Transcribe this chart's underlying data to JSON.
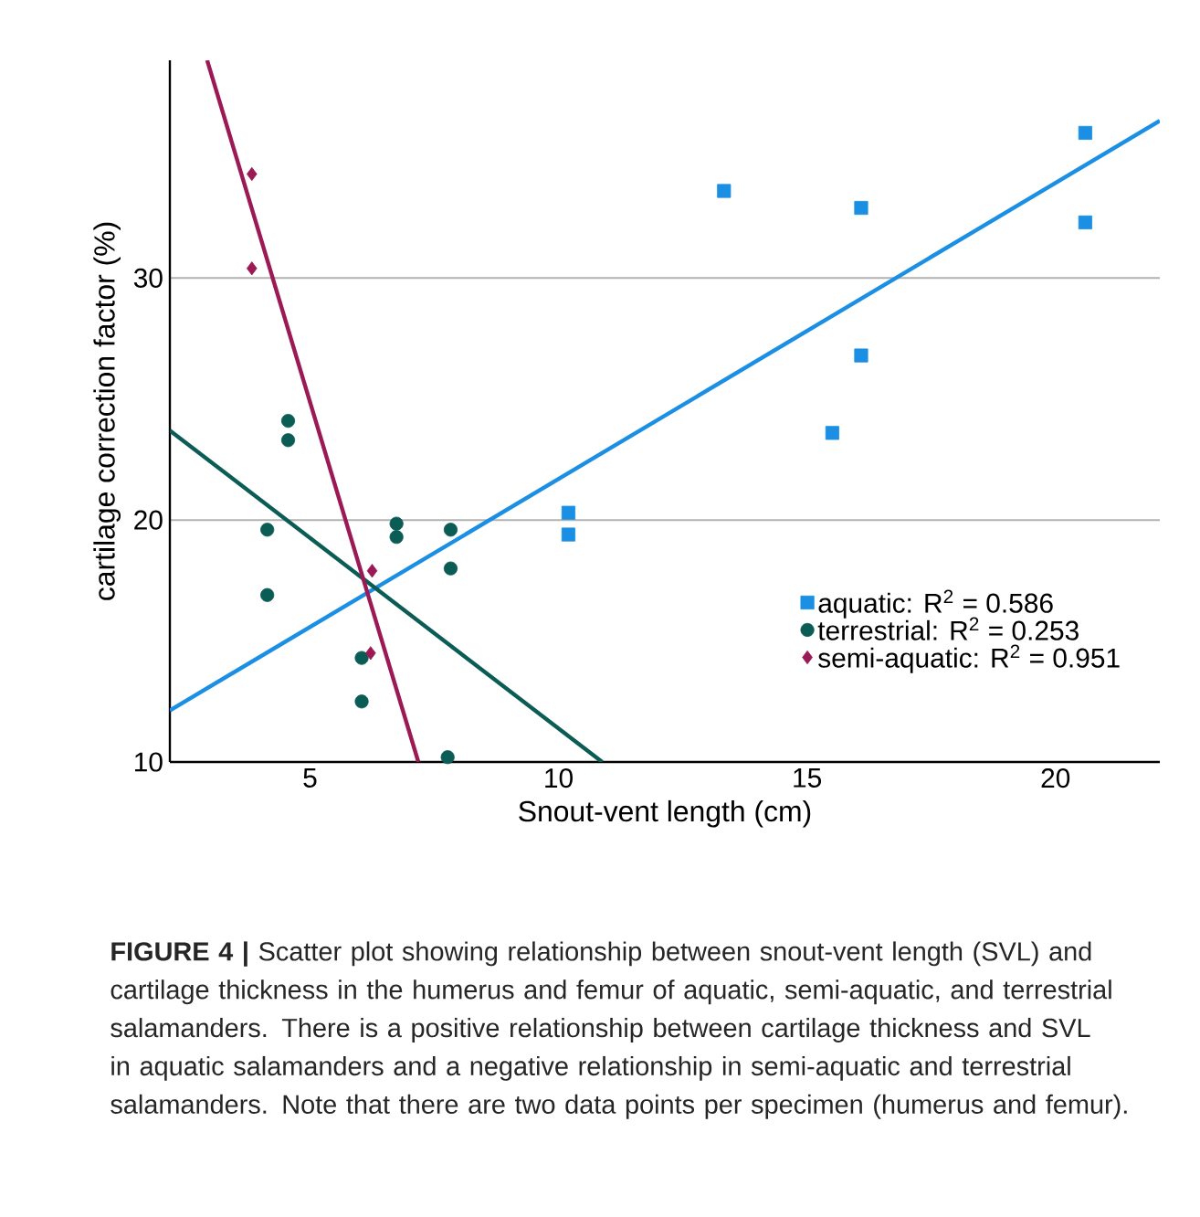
{
  "chart_data": {
    "type": "scatter",
    "xlabel": "Snout-vent length (cm)",
    "ylabel": "cartilage correction factor (%)",
    "xlim": [
      2.18,
      22.1
    ],
    "ylim": [
      10,
      39
    ],
    "xticks": [
      5,
      10,
      15,
      20
    ],
    "yticks": [
      10,
      20,
      30
    ],
    "grid": "y",
    "legend": "bottom right",
    "series": [
      {
        "name": "aquatic: R$^{2}$ = 0.586",
        "color": "#1a8fe3",
        "marker": "square",
        "x": [
          10.2,
          10.2,
          13.33,
          16.09,
          20.6,
          20.6,
          16.09,
          15.51
        ],
        "values": [
          20.3,
          19.4,
          33.6,
          32.9,
          36.0,
          32.3,
          26.8,
          23.6
        ]
      },
      {
        "name": "terrestrial: R$^{2}$ = 0.253",
        "color": "#0b5c55",
        "marker": "circle",
        "x": [
          4.56,
          4.56,
          4.14,
          4.14,
          6.74,
          6.74,
          7.83,
          7.83,
          6.04,
          6.04,
          7.77
        ],
        "values": [
          24.1,
          23.3,
          19.6,
          16.9,
          19.85,
          19.3,
          19.6,
          18.0,
          14.3,
          12.5,
          10.2
        ]
      },
      {
        "name": "semi-aquatic: R$^{2}$ = 0.951",
        "color": "#9b1a55",
        "marker": "diamond",
        "x": [
          3.83,
          3.83,
          6.25,
          6.22
        ],
        "values": [
          34.3,
          30.4,
          17.9,
          14.5
        ]
      },
      {
        "type": "line",
        "color": "#1a8fe3",
        "marker": "none",
        "x": [
          2.18,
          22.1
        ],
        "values": [
          12.13,
          36.5
        ]
      },
      {
        "type": "line",
        "color": "#0b5c55",
        "marker": "none",
        "x": [
          2.18,
          10.88
        ],
        "values": [
          23.7,
          10
        ]
      },
      {
        "type": "line",
        "color": "#9b1a55",
        "marker": "none",
        "x": [
          2.93,
          7.18
        ],
        "values": [
          39,
          10
        ]
      }
    ],
    "annotations": [
      "**FIGURE 4 |** Scatter plot showing relationship between snout-vent length (SVL) and cartilage thickness in the humerus and femur of aquatic, semi-aquatic, and terrestrial salamanders. There is a positive relationship between cartilage thickness and SVL in aquatic salamanders and a negative relationship in semi-aquatic and terrestrial salamanders. Note that there are two data points per specimen (humerus and femur)."
    ]
  }
}
